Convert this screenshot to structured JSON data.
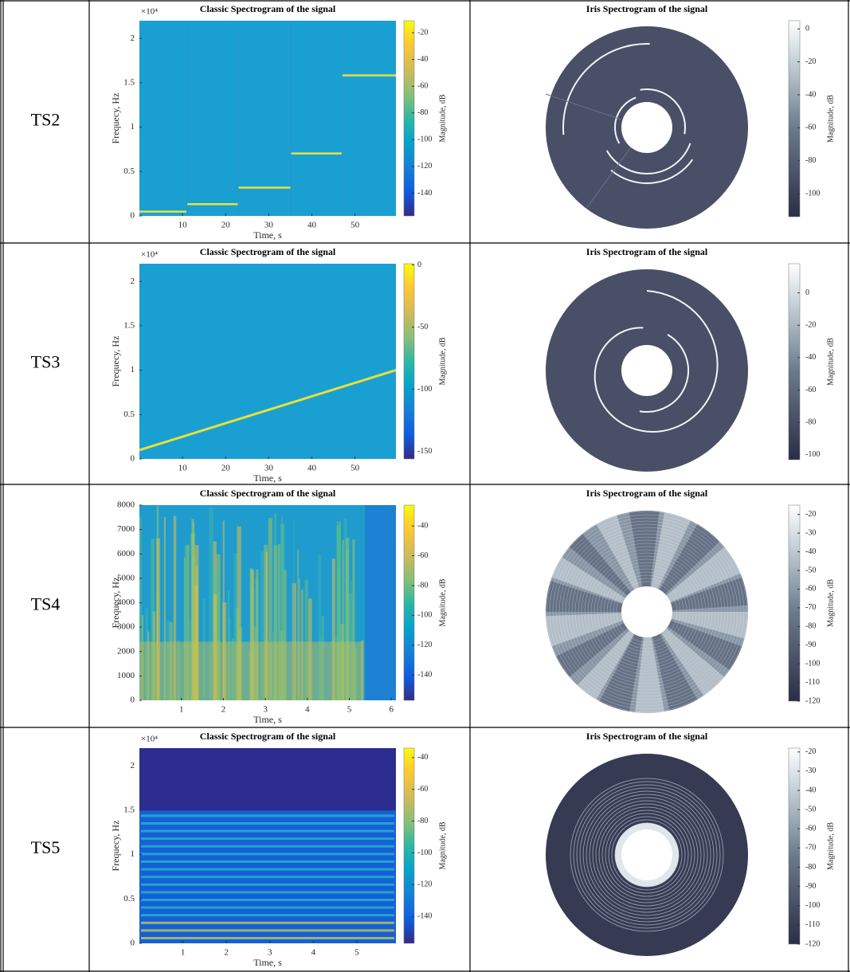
{
  "rows": [
    {
      "label": "TS2",
      "classic": {
        "title": "Classic Spectrogram of the signal",
        "xlabel": "Time, s",
        "ylabel": "Frequecy, Hz",
        "exponent": "×10⁴",
        "xlim": [
          0,
          59.5
        ],
        "ylim": [
          0,
          2.2
        ],
        "xticks": [
          10,
          20,
          30,
          40,
          50
        ],
        "yticks": [
          0,
          0.5,
          1,
          1.5,
          2
        ],
        "clim": [
          -157,
          -11
        ],
        "cticks": [
          -140,
          -120,
          -100,
          -80,
          -60,
          -40,
          -20
        ],
        "clabel": "Magnitude, dB"
      },
      "iris": {
        "title": "Iris Spectrogram of the signal",
        "clim": [
          -114,
          5
        ],
        "cticks": [
          -100,
          -80,
          -60,
          -40,
          -20,
          0
        ],
        "clabel": "Magnitude, dB"
      }
    },
    {
      "label": "TS3",
      "classic": {
        "title": "Classic Spectrogram of the signal",
        "xlabel": "Time, s",
        "ylabel": "Frequecy, Hz",
        "exponent": "×10⁴",
        "xlim": [
          0,
          59.5
        ],
        "ylim": [
          0,
          2.2
        ],
        "xticks": [
          10,
          20,
          30,
          40,
          50
        ],
        "yticks": [
          0,
          0.5,
          1,
          1.5,
          2
        ],
        "clim": [
          -156,
          1
        ],
        "cticks": [
          -150,
          -100,
          -50,
          0
        ],
        "clabel": "Magnitude, dB"
      },
      "iris": {
        "title": "Iris Spectrogram of the signal",
        "clim": [
          -103,
          18
        ],
        "cticks": [
          -100,
          -80,
          -60,
          -40,
          -20,
          0
        ],
        "clabel": "Magnitude, dB"
      }
    },
    {
      "label": "TS4",
      "classic": {
        "title": "Classic Spectrogram of the signal",
        "xlabel": "Time, s",
        "ylabel": "Frequecy, Hz",
        "xlim": [
          0,
          6.11
        ],
        "ylim": [
          0,
          8000
        ],
        "xticks": [
          1,
          2,
          3,
          4,
          5,
          6
        ],
        "yticks": [
          0,
          1000,
          2000,
          3000,
          4000,
          5000,
          6000,
          7000,
          8000
        ],
        "clim": [
          -157,
          -26
        ],
        "cticks": [
          -140,
          -120,
          -100,
          -80,
          -60,
          -40
        ],
        "clabel": "Magnitude, dB"
      },
      "iris": {
        "title": "Iris Spectrogram of the signal",
        "clim": [
          -120,
          -15
        ],
        "cticks": [
          -120,
          -110,
          -100,
          -90,
          -80,
          -70,
          -60,
          -50,
          -40,
          -30,
          -20
        ],
        "clabel": "Magnitude, dB"
      }
    },
    {
      "label": "TS5",
      "classic": {
        "title": "Classic Spectrogram of the signal",
        "xlabel": "Time, s",
        "ylabel": "Frequecy, Hz",
        "exponent": "×10⁴",
        "xlim": [
          0,
          5.9
        ],
        "ylim": [
          0,
          2.2
        ],
        "xticks": [
          1,
          2,
          3,
          4,
          5
        ],
        "yticks": [
          0,
          0.5,
          1,
          1.5,
          2
        ],
        "clim": [
          -157,
          -34
        ],
        "cticks": [
          -140,
          -120,
          -100,
          -80,
          -60,
          -40
        ],
        "clabel": "Magnitude, dB"
      },
      "iris": {
        "title": "Iris Spectrogram of the signal",
        "clim": [
          -120,
          -18
        ],
        "cticks": [
          -120,
          -110,
          -100,
          -90,
          -80,
          -70,
          -60,
          -50,
          -40,
          -30,
          -20
        ],
        "clabel": "Magnitude, dB"
      }
    }
  ]
}
